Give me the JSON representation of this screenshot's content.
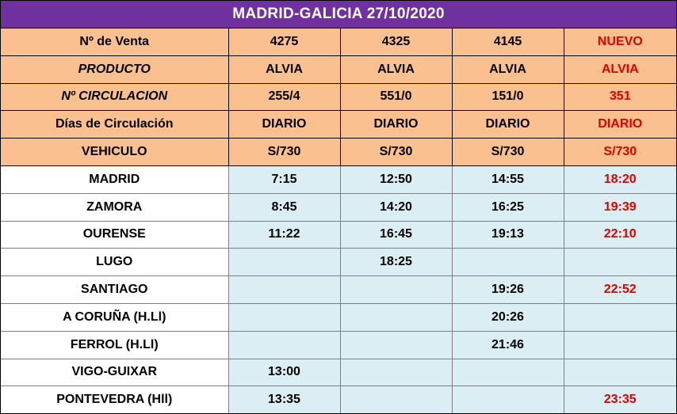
{
  "title": "MADRID-GALICIA 27/10/2020",
  "table": {
    "rows": [
      [
        "Nº de Venta",
        "4275",
        "4325",
        "4145",
        "NUEVO"
      ],
      [
        "PRODUCTO",
        "ALVIA",
        "ALVIA",
        "ALVIA",
        "ALVIA"
      ],
      [
        "Nº CIRCULACION",
        "255/4",
        "551/0",
        "151/0",
        "351"
      ],
      [
        "Días de Circulación",
        "DIARIO",
        "DIARIO",
        "DIARIO",
        "DIARIO"
      ],
      [
        "VEHICULO",
        "S/730",
        "S/730",
        "S/730",
        "S/730"
      ],
      [
        "MADRID",
        "7:15",
        "12:50",
        "14:55",
        "18:20"
      ],
      [
        "ZAMORA",
        "8:45",
        "14:20",
        "16:25",
        "19:39"
      ],
      [
        "OURENSE",
        "11:22",
        "16:45",
        "19:13",
        "22:10"
      ],
      [
        "LUGO",
        null,
        "18:25",
        null,
        null
      ],
      [
        "SANTIAGO",
        null,
        null,
        "19:26",
        "22:52"
      ],
      [
        "A CORUÑA (H.Ll)",
        null,
        null,
        "20:26",
        null
      ],
      [
        "FERROL (H.Ll)",
        null,
        null,
        "21:46",
        null
      ],
      [
        "VIGO-GUIXAR",
        "13:00",
        null,
        null,
        null
      ],
      [
        "PONTEVEDRA (Hll)",
        "13:35",
        null,
        null,
        "23:35"
      ]
    ]
  }
}
